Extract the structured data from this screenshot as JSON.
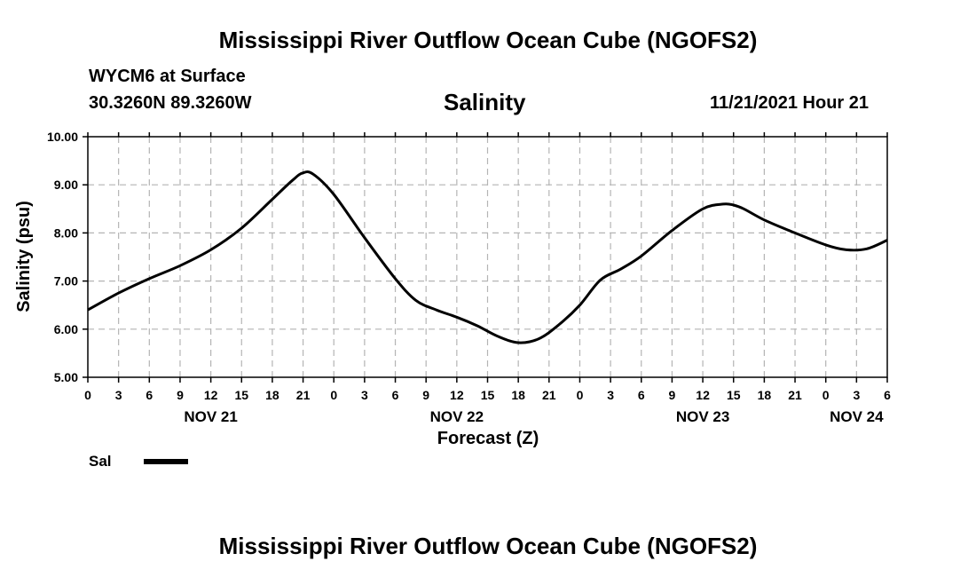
{
  "header": {
    "title_top": "Mississippi River Outflow Ocean Cube (NGOFS2)",
    "title_bottom": "Mississippi River Outflow Ocean Cube (NGOFS2)",
    "station": "WYCM6 at Surface",
    "coords": "30.3260N  89.3260W",
    "chart_title": "Salinity",
    "timestamp": "11/21/2021 Hour 21"
  },
  "legend": {
    "label": "Sal"
  },
  "colors": {
    "line": "#000000",
    "grid": "#b4b4b4"
  },
  "chart_data": {
    "type": "line",
    "title": "Salinity",
    "xlabel": "Forecast (Z)",
    "ylabel": "Salinity (psu)",
    "ylim": [
      5.0,
      10.0
    ],
    "xlim": [
      0,
      78
    ],
    "yticks": [
      "5.00",
      "6.00",
      "7.00",
      "8.00",
      "9.00",
      "10.00"
    ],
    "xtick_labels": [
      "0",
      "3",
      "6",
      "9",
      "12",
      "15",
      "18",
      "21",
      "0",
      "3",
      "6",
      "9",
      "12",
      "15",
      "18",
      "21",
      "0",
      "3",
      "6",
      "9",
      "12",
      "15",
      "18",
      "21",
      "0",
      "3",
      "6"
    ],
    "day_labels": [
      {
        "label": "NOV 21",
        "hour": 12
      },
      {
        "label": "NOV 22",
        "hour": 36
      },
      {
        "label": "NOV 23",
        "hour": 60
      },
      {
        "label": "NOV 24",
        "hour": 75
      }
    ],
    "series": [
      {
        "name": "Sal",
        "x": [
          0,
          3,
          6,
          9,
          12,
          15,
          18,
          20,
          21,
          22,
          24,
          27,
          30,
          32,
          34,
          36,
          38,
          40,
          42,
          44,
          46,
          48,
          50,
          52,
          54,
          57,
          60,
          62,
          63,
          64,
          66,
          69,
          72,
          74,
          76,
          78
        ],
        "values": [
          6.4,
          6.75,
          7.05,
          7.32,
          7.65,
          8.1,
          8.7,
          9.1,
          9.25,
          9.22,
          8.8,
          7.9,
          7.05,
          6.6,
          6.4,
          6.25,
          6.07,
          5.85,
          5.72,
          5.8,
          6.1,
          6.5,
          7.02,
          7.25,
          7.52,
          8.05,
          8.5,
          8.6,
          8.58,
          8.5,
          8.27,
          8.0,
          7.75,
          7.65,
          7.67,
          7.85
        ]
      }
    ]
  }
}
